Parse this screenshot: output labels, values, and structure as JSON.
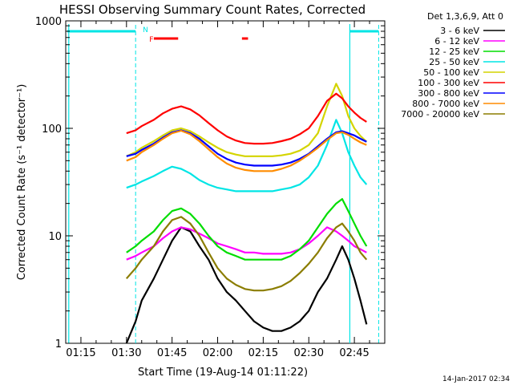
{
  "chart_data": {
    "type": "line",
    "title": "HESSI Observing Summary Count Rates, Corrected",
    "xlabel": "Start Time (19-Aug-14 01:11:22)",
    "ylabel": "Corrected Count Rate (s⁻¹ detector⁻¹)",
    "yscale": "log",
    "ylim": [
      1,
      1000
    ],
    "xlim_minutes": [
      -5,
      100
    ],
    "x_ticks": [
      "01:15",
      "01:30",
      "01:45",
      "02:00",
      "02:15",
      "02:30",
      "02:45"
    ],
    "y_ticks": [
      "1",
      "10",
      "100",
      "1000"
    ],
    "legend_title": "Det 1,3,6,9, Att 0",
    "legend_position": "outside-right",
    "footer": "14-Jan-2017 02:34",
    "x_minutes": [
      15,
      18,
      20,
      24,
      27,
      30,
      33,
      36,
      39,
      42,
      45,
      48,
      51,
      54,
      57,
      60,
      63,
      66,
      69,
      72,
      75,
      78,
      81,
      84,
      86,
      88,
      90,
      92,
      94
    ],
    "series": [
      {
        "name": "3 - 6 keV",
        "color": "#000000",
        "values": [
          1.0,
          1.6,
          2.5,
          4,
          6,
          9,
          12,
          11,
          8,
          6,
          4,
          3,
          2.5,
          2,
          1.6,
          1.4,
          1.3,
          1.3,
          1.4,
          1.6,
          2,
          3,
          4,
          6,
          8,
          6,
          4,
          2.5,
          1.5
        ]
      },
      {
        "name": "6 - 12 keV",
        "color": "#ff00ff",
        "values": [
          6,
          6.5,
          7,
          8,
          9.5,
          11,
          12,
          11.5,
          10.5,
          9.5,
          8.5,
          8,
          7.5,
          7,
          7,
          6.8,
          6.8,
          6.8,
          7,
          7.5,
          8.5,
          10,
          12,
          11,
          10,
          9,
          8,
          7.5,
          7
        ]
      },
      {
        "name": "12 - 25 keV",
        "color": "#00dd00",
        "values": [
          7,
          8,
          9,
          11,
          14,
          17,
          18,
          16,
          13,
          10,
          8,
          7,
          6.5,
          6,
          6,
          6,
          6,
          6,
          6.5,
          7.5,
          9,
          12,
          16,
          20,
          22,
          17,
          13,
          10,
          8
        ]
      },
      {
        "name": "25 - 50 keV",
        "color": "#00e5e5",
        "values": [
          28,
          30,
          32,
          36,
          40,
          44,
          42,
          38,
          33,
          30,
          28,
          27,
          26,
          26,
          26,
          26,
          26,
          27,
          28,
          30,
          35,
          45,
          70,
          120,
          90,
          60,
          45,
          35,
          30
        ]
      },
      {
        "name": "50 - 100 keV",
        "color": "#d4d400",
        "values": [
          55,
          60,
          66,
          76,
          86,
          96,
          100,
          94,
          84,
          74,
          66,
          60,
          57,
          55,
          55,
          55,
          55,
          56,
          58,
          62,
          70,
          90,
          160,
          260,
          200,
          130,
          100,
          85,
          75
        ]
      },
      {
        "name": "100 - 300 keV",
        "color": "#ff0000",
        "values": [
          90,
          96,
          105,
          120,
          138,
          152,
          160,
          150,
          132,
          112,
          96,
          84,
          77,
          73,
          72,
          72,
          73,
          76,
          80,
          88,
          100,
          130,
          180,
          210,
          190,
          160,
          140,
          125,
          115
        ]
      },
      {
        "name": "300 - 800 keV",
        "color": "#0000ff",
        "values": [
          55,
          58,
          63,
          72,
          82,
          92,
          96,
          90,
          80,
          68,
          58,
          52,
          48,
          46,
          45,
          45,
          45,
          46,
          48,
          52,
          58,
          68,
          80,
          92,
          94,
          90,
          86,
          80,
          75
        ]
      },
      {
        "name": "800 - 7000 keV",
        "color": "#ff8c00",
        "values": [
          50,
          54,
          60,
          70,
          80,
          90,
          95,
          88,
          76,
          64,
          54,
          47,
          43,
          41,
          40,
          40,
          40,
          42,
          45,
          50,
          57,
          66,
          78,
          90,
          92,
          87,
          80,
          74,
          70
        ]
      },
      {
        "name": "7000 - 20000 keV",
        "color": "#8b7d00",
        "values": [
          4,
          5,
          6,
          8,
          11,
          14,
          15,
          13,
          10,
          7,
          5,
          4,
          3.5,
          3.2,
          3.1,
          3.1,
          3.2,
          3.4,
          3.8,
          4.5,
          5.5,
          7,
          9.5,
          12,
          13,
          11,
          9,
          7,
          6
        ]
      }
    ],
    "markers": {
      "vertical_lines_minutes": [
        18,
        88.5,
        98
      ],
      "vertical_line_color": "#00e5e5",
      "top_bar_label": "N",
      "flare_label": "F",
      "flare_color": "#ff0000"
    }
  }
}
